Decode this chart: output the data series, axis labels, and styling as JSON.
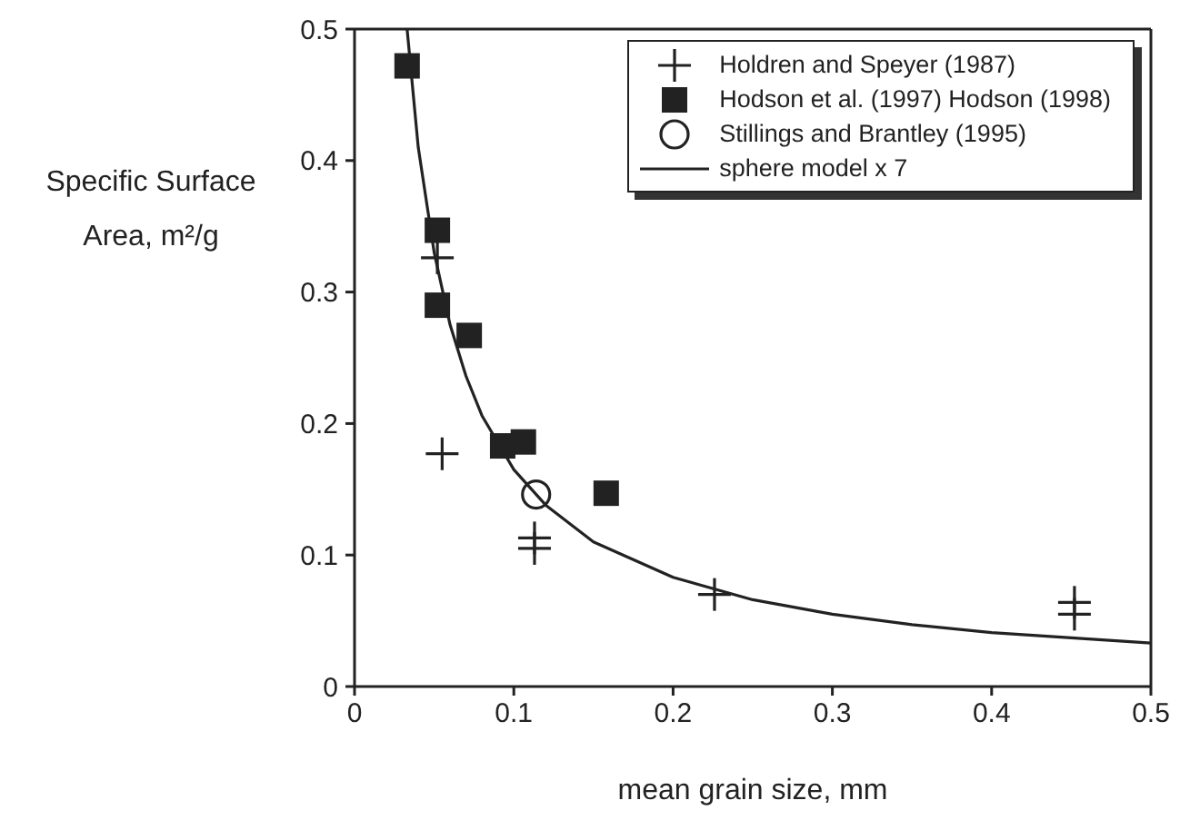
{
  "chart_data": {
    "type": "scatter",
    "xlabel": "mean grain size, mm",
    "ylabel": "Specific Surface Area, m²/g",
    "xlim": [
      0,
      0.5
    ],
    "xticks": [
      0,
      0.1,
      0.2,
      0.3,
      0.4,
      0.5
    ],
    "ylim": [
      0,
      0.5
    ],
    "yticks": [
      0,
      0.1,
      0.2,
      0.3,
      0.4,
      0.5
    ],
    "legend": "top right",
    "series": [
      {
        "name": "Holdren and Speyer (1987)",
        "color": "#222222",
        "marker": "cross",
        "x": [
          0.052,
          0.055,
          0.113,
          0.113,
          0.226,
          0.452,
          0.452
        ],
        "values": [
          0.326,
          0.177,
          0.113,
          0.105,
          0.07,
          0.064,
          0.055
        ]
      },
      {
        "name": "Hodson et al. (1997)  Hodson (1998)",
        "color": "#222222",
        "marker": "square",
        "x": [
          0.033,
          0.052,
          0.052,
          0.072,
          0.093,
          0.106,
          0.158
        ],
        "values": [
          0.472,
          0.347,
          0.29,
          0.267,
          0.183,
          0.186,
          0.147
        ]
      },
      {
        "name": "Stillings and Brantley (1995)",
        "color": "#222222",
        "marker": "circle",
        "x": [
          0.114
        ],
        "values": [
          0.146
        ]
      },
      {
        "name": "sphere model x 7",
        "color": "#222222",
        "type": "line",
        "marker": "none",
        "x": [
          0.033,
          0.04,
          0.05,
          0.06,
          0.07,
          0.08,
          0.1,
          0.12,
          0.15,
          0.2,
          0.25,
          0.3,
          0.35,
          0.4,
          0.45,
          0.5
        ],
        "values": [
          0.5,
          0.41,
          0.33,
          0.275,
          0.236,
          0.206,
          0.165,
          0.138,
          0.11,
          0.083,
          0.066,
          0.055,
          0.047,
          0.041,
          0.037,
          0.033
        ]
      }
    ]
  }
}
